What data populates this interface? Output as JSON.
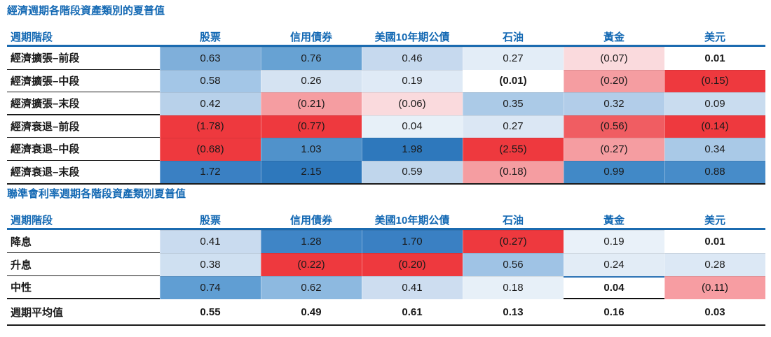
{
  "colors": {
    "title_blue": "#1268b3",
    "header_rule_blue": "#1b6bb0",
    "grid_black": "#1a1a1a",
    "strong_red": "#ee393e",
    "strong_blue": "#2e78bc"
  },
  "chart_data": [
    {
      "type": "table",
      "title": "經濟週期各階段資產類別的夏普值",
      "row_header": "週期階段",
      "columns": [
        "股票",
        "信用債券",
        "美國10年期公債",
        "石油",
        "黃金",
        "美元"
      ],
      "rows": [
        {
          "label": "經濟擴張–前段",
          "cells": [
            {
              "v": "0.63",
              "c": "#7fafda"
            },
            {
              "v": "0.76",
              "c": "#67a2d3"
            },
            {
              "v": "0.46",
              "c": "#c6d9ee"
            },
            {
              "v": "0.27",
              "c": "#e3edf7"
            },
            {
              "v": "(0.07)",
              "c": "#fadadd"
            },
            {
              "v": "0.01",
              "c": null
            }
          ]
        },
        {
          "label": "經濟擴張–中段",
          "cells": [
            {
              "v": "0.58",
              "c": "#a3c6e7"
            },
            {
              "v": "0.26",
              "c": "#d5e3f2"
            },
            {
              "v": "0.19",
              "c": "#dfeaf6"
            },
            {
              "v": "(0.01)",
              "c": null
            },
            {
              "v": "(0.20)",
              "c": "#f59da1"
            },
            {
              "v": "(0.15)",
              "c": "#ee393e"
            }
          ]
        },
        {
          "label": "經濟擴張–末段",
          "group_end": true,
          "cells": [
            {
              "v": "0.42",
              "c": "#b8d1ea"
            },
            {
              "v": "(0.21)",
              "c": "#f59da1"
            },
            {
              "v": "(0.06)",
              "c": "#fadadd"
            },
            {
              "v": "0.35",
              "c": "#abcae7"
            },
            {
              "v": "0.32",
              "c": "#b2cde9"
            },
            {
              "v": "0.09",
              "c": "#c9dcef"
            }
          ]
        },
        {
          "label": "經濟衰退–前段",
          "cells": [
            {
              "v": "(1.78)",
              "c": "#ee393e"
            },
            {
              "v": "(0.77)",
              "c": "#ee393e"
            },
            {
              "v": "0.04",
              "c": "#e7f0f8"
            },
            {
              "v": "0.27",
              "c": "#dbe7f4"
            },
            {
              "v": "(0.56)",
              "c": "#f05d62"
            },
            {
              "v": "(0.14)",
              "c": "#ee393e"
            }
          ]
        },
        {
          "label": "經濟衰退–中段",
          "cells": [
            {
              "v": "(0.68)",
              "c": "#ee393e"
            },
            {
              "v": "1.03",
              "c": "#5092cb"
            },
            {
              "v": "1.98",
              "c": "#2e78bc"
            },
            {
              "v": "(2.55)",
              "c": "#ee393e"
            },
            {
              "v": "(0.27)",
              "c": "#f59da1"
            },
            {
              "v": "0.34",
              "c": "#a9c9e7"
            }
          ]
        },
        {
          "label": "經濟衰退–末段",
          "cells": [
            {
              "v": "1.72",
              "c": "#3a80c3"
            },
            {
              "v": "2.15",
              "c": "#2e78bc"
            },
            {
              "v": "0.59",
              "c": "#c0d6ec"
            },
            {
              "v": "(0.18)",
              "c": "#f59da1"
            },
            {
              "v": "0.99",
              "c": "#4189c7"
            },
            {
              "v": "0.88",
              "c": "#478cc9"
            }
          ]
        }
      ]
    },
    {
      "type": "table",
      "title": "聯準會利率週期各階段資產類別夏普值",
      "row_header": "週期階段",
      "columns": [
        "股票",
        "信用債券",
        "美國10年期公債",
        "石油",
        "黃金",
        "美元"
      ],
      "rows": [
        {
          "label": "降息",
          "cells": [
            {
              "v": "0.41",
              "c": "#c9dbef"
            },
            {
              "v": "1.28",
              "c": "#3f85c6"
            },
            {
              "v": "1.70",
              "c": "#3a80c3"
            },
            {
              "v": "(0.27)",
              "c": "#ee393e"
            },
            {
              "v": "0.19",
              "c": "#e9f1f9"
            },
            {
              "v": "0.01",
              "c": null
            }
          ]
        },
        {
          "label": "升息",
          "cells": [
            {
              "v": "0.38",
              "c": "#cfe0f1"
            },
            {
              "v": "(0.22)",
              "c": "#ee393e"
            },
            {
              "v": "(0.20)",
              "c": "#ee393e"
            },
            {
              "v": "0.56",
              "c": "#9fc3e5"
            },
            {
              "v": "0.24",
              "c": "#e2ecf6"
            },
            {
              "v": "0.28",
              "c": "#dce8f5"
            }
          ]
        },
        {
          "label": "中性",
          "group_end": true,
          "cells": [
            {
              "v": "0.74",
              "c": "#609ed3"
            },
            {
              "v": "0.62",
              "c": "#8db9e0"
            },
            {
              "v": "0.41",
              "c": "#cdddf0"
            },
            {
              "v": "0.18",
              "c": "#e7f0f8"
            },
            {
              "v": "0.04",
              "c": null,
              "edge": true
            },
            {
              "v": "(0.11)",
              "c": "#f79da2"
            }
          ]
        },
        {
          "label": "週期平均值",
          "avg": true,
          "cells": [
            {
              "v": "0.55",
              "c": null
            },
            {
              "v": "0.49",
              "c": null
            },
            {
              "v": "0.61",
              "c": null
            },
            {
              "v": "0.13",
              "c": null
            },
            {
              "v": "0.16",
              "c": null
            },
            {
              "v": "0.03",
              "c": null
            }
          ]
        }
      ]
    }
  ]
}
